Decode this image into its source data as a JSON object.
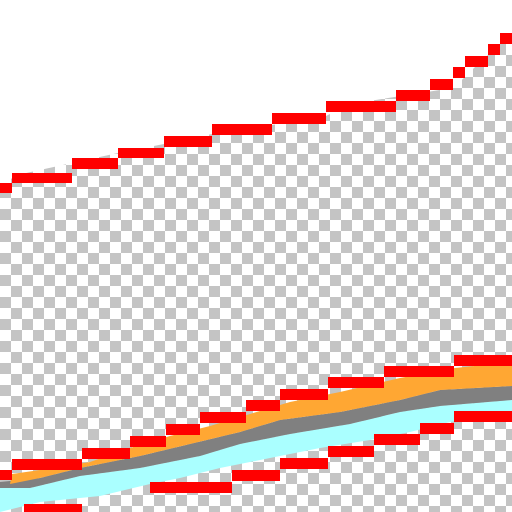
{
  "canvas": {
    "transparency_pattern": "checkerboard",
    "colors": {
      "checker_light": "#ffffff",
      "checker_dark": "#c4c4c4",
      "line_red": "#ff0000",
      "band_orange": "#ffa733",
      "band_gray": "#808080",
      "band_cyan": "#aaffff",
      "opaque_white": "#ffffff"
    }
  }
}
